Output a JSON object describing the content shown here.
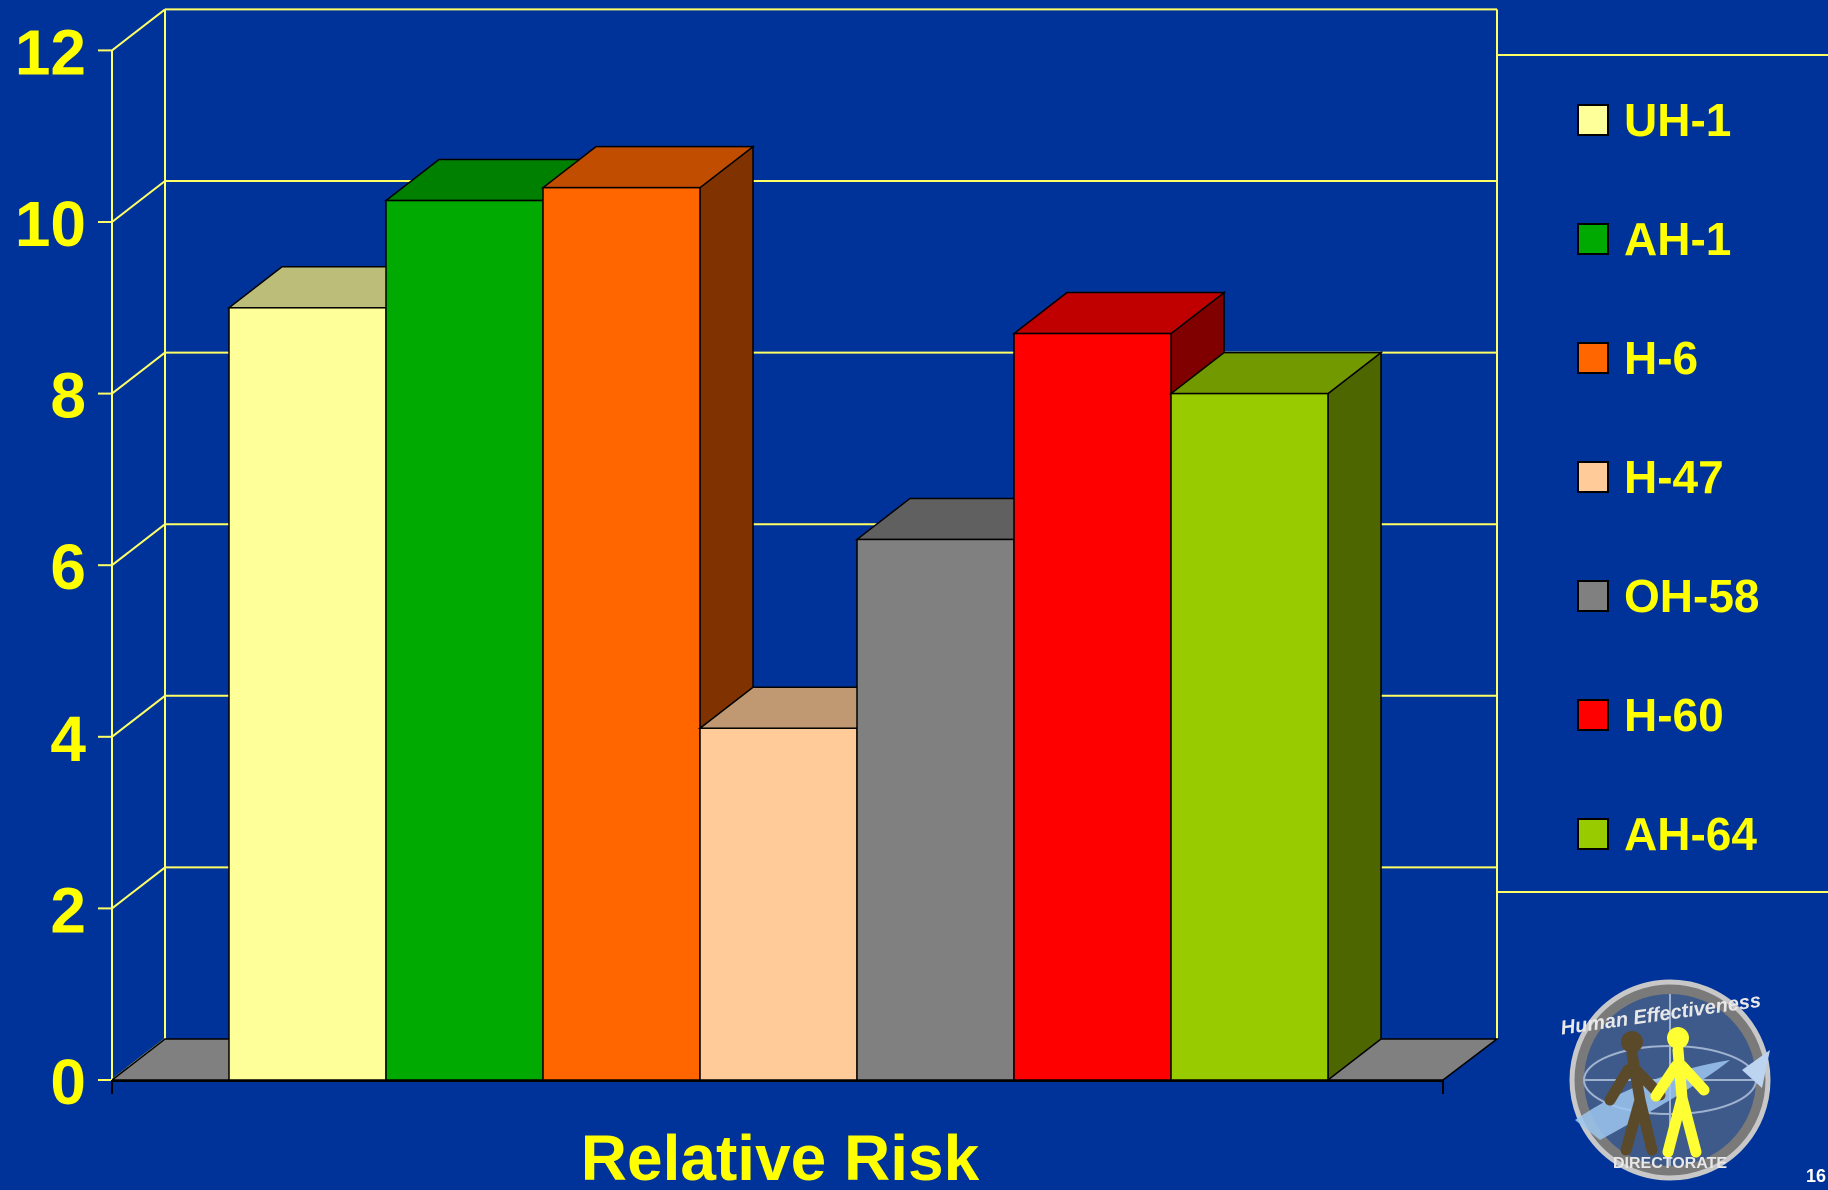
{
  "chart_data": {
    "type": "bar",
    "style": "3d-clustered-column",
    "xlabel": "Relative Risk",
    "ylabel": "",
    "ylim": [
      0,
      12
    ],
    "yticks": [
      0,
      2,
      4,
      6,
      8,
      10,
      12
    ],
    "grid": true,
    "legend_position": "right",
    "series": [
      {
        "name": "UH-1",
        "values": [
          9.0
        ],
        "color": "#FFFF99",
        "top": "#BDBD7A",
        "side": "#99994D"
      },
      {
        "name": "AH-1",
        "values": [
          10.25
        ],
        "color": "#00AA00",
        "top": "#008000",
        "side": "#005500"
      },
      {
        "name": "H-6",
        "values": [
          10.4
        ],
        "color": "#FF6600",
        "top": "#C04D00",
        "side": "#803300"
      },
      {
        "name": "H-47",
        "values": [
          4.1
        ],
        "color": "#FFCC99",
        "top": "#C09973",
        "side": "#80664D"
      },
      {
        "name": "OH-58",
        "values": [
          6.3
        ],
        "color": "#808080",
        "top": "#606060",
        "side": "#404040"
      },
      {
        "name": "H-60",
        "values": [
          8.7
        ],
        "color": "#FF0000",
        "top": "#C00000",
        "side": "#800000"
      },
      {
        "name": "AH-64",
        "values": [
          8.0
        ],
        "color": "#99CC00",
        "top": "#739900",
        "side": "#4D6600"
      }
    ]
  },
  "colors": {
    "background": "#003399",
    "text": "#FFFF00",
    "grid": "#FFFF66",
    "floor": "#808080"
  },
  "logo": {
    "icon": "human-effectiveness-directorate-seal-icon",
    "text_top": "Human Effectiveness",
    "text_bottom": "DIRECTORATE"
  },
  "page_number": "16"
}
